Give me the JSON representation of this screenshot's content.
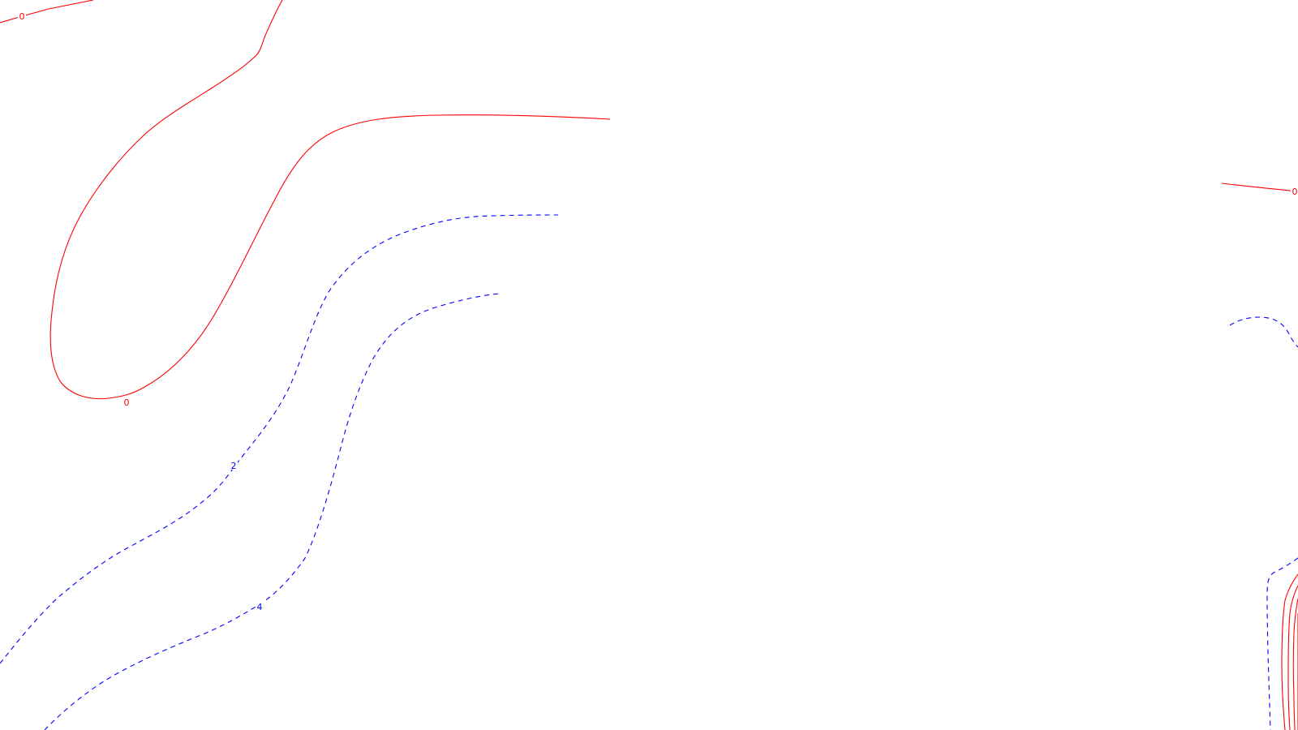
{
  "chart_data": {
    "type": "contour",
    "title": "",
    "xlabel": "",
    "ylabel": "",
    "legend": "none",
    "grid": false,
    "colors": {
      "positive": "#ff0000",
      "negative": "#0000ff"
    },
    "styles": {
      "positive": "solid",
      "negative": "dashed"
    },
    "contours": [
      {
        "id": "c0-top-left",
        "level": 0,
        "label": "0",
        "color_key": "positive"
      },
      {
        "id": "c0-big-curve",
        "level": 0,
        "label": "0",
        "color_key": "positive"
      },
      {
        "id": "c0-right",
        "level": 0,
        "label": "0",
        "color_key": "positive"
      },
      {
        "id": "c2-curve",
        "level": 2,
        "label": "2",
        "color_key": "negative"
      },
      {
        "id": "c4-curve",
        "level": 4,
        "label": "4",
        "color_key": "negative"
      },
      {
        "id": "c-right-upper",
        "level": null,
        "label": "",
        "color_key": "negative"
      },
      {
        "id": "c-right-lower",
        "level": null,
        "label": "",
        "color_key": "negative"
      },
      {
        "id": "c-right-cluster-1",
        "level": null,
        "label": "",
        "color_key": "positive"
      },
      {
        "id": "c-right-cluster-2",
        "level": null,
        "label": "",
        "color_key": "positive"
      },
      {
        "id": "c-right-cluster-3",
        "level": null,
        "label": "",
        "color_key": "positive"
      },
      {
        "id": "c-right-cluster-4",
        "level": null,
        "label": "",
        "color_key": "positive"
      }
    ]
  }
}
